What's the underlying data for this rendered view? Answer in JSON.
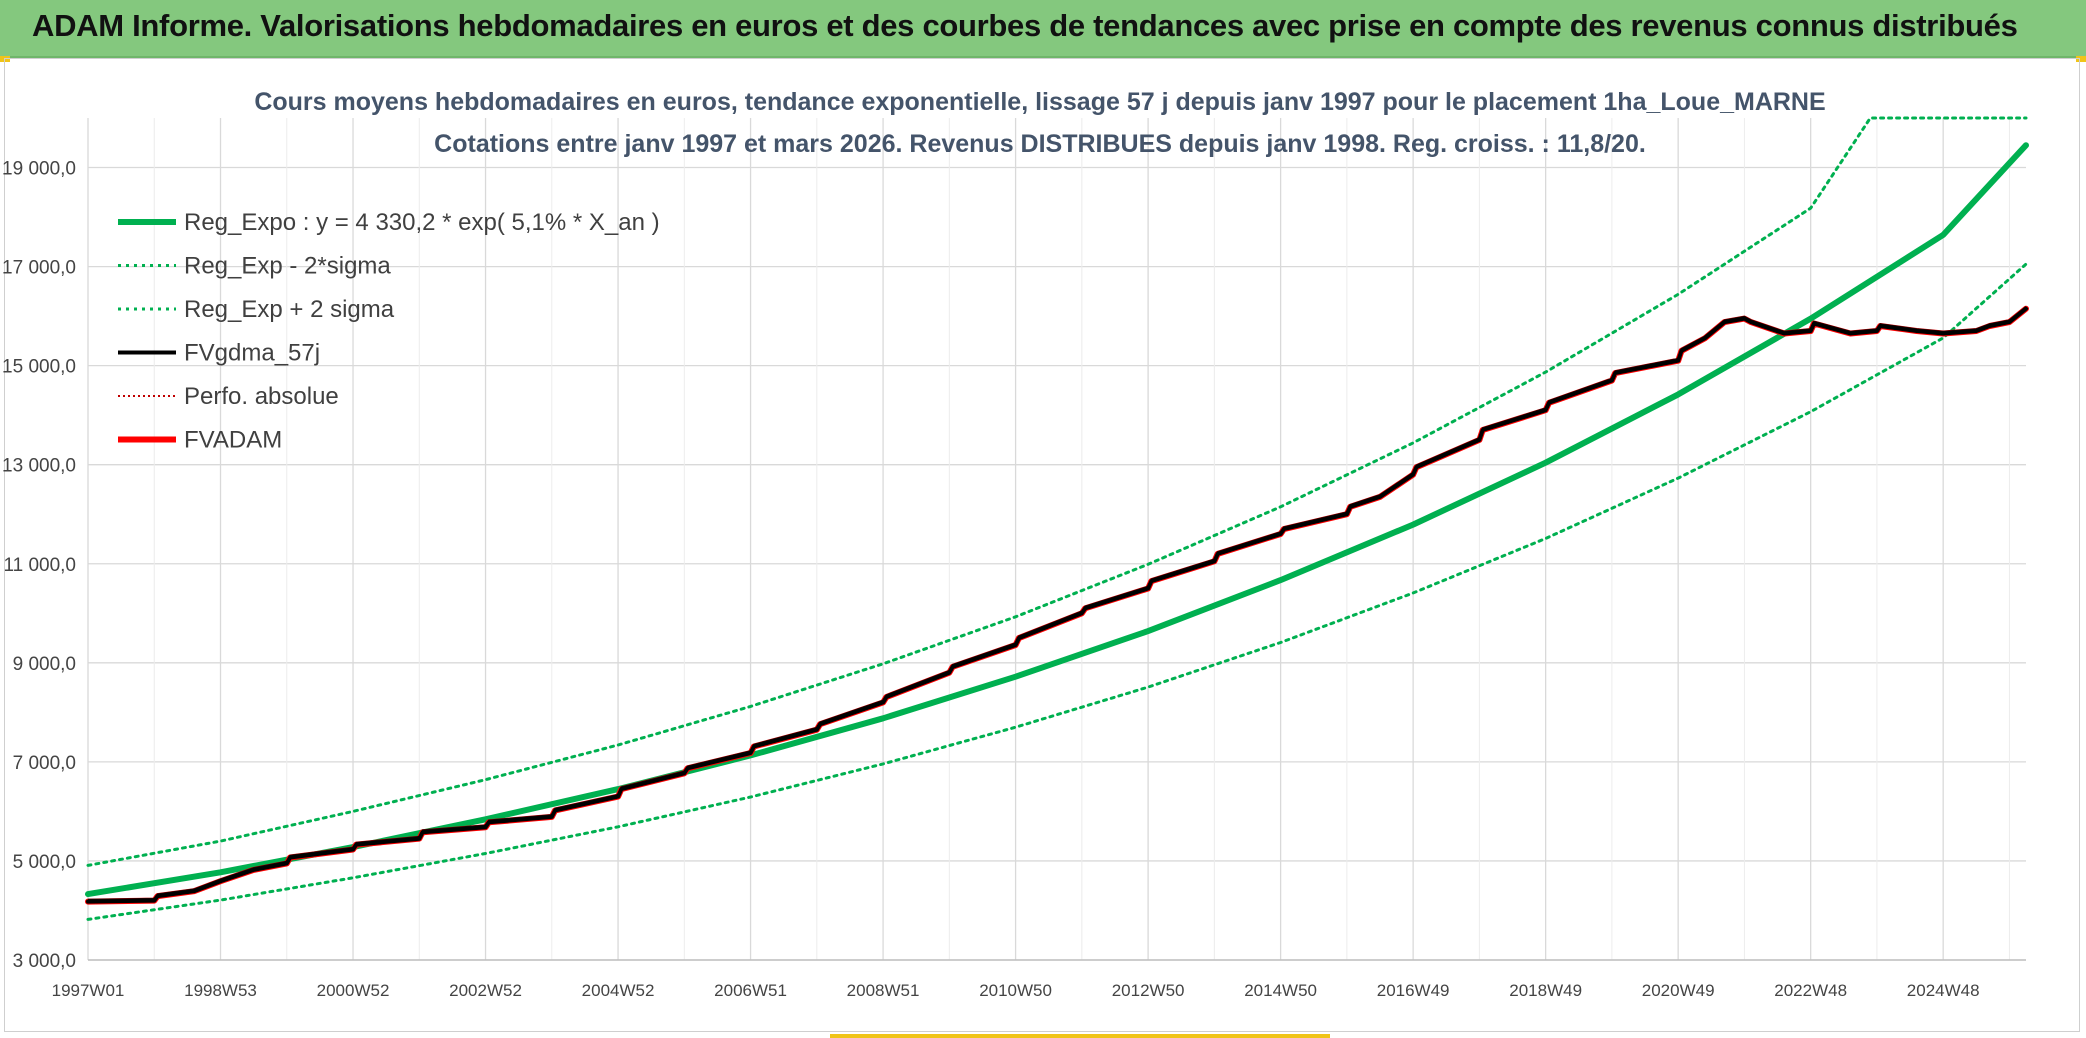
{
  "banner": {
    "title": "ADAM Informe. Valorisations hebdomadaires en euros et des courbes de tendances avec prise en compte des revenus connus distribués"
  },
  "colors": {
    "banner_bg": "#84c87e",
    "reg_green": "#00b050",
    "fvadam_red": "#ff0000",
    "fvgdma_black": "#000000",
    "perfo_red": "#c00000"
  },
  "chart_data": {
    "type": "line",
    "title": "Cours moyens hebdomadaires en euros, tendance exponentielle, lissage 57 j depuis janv 1997 pour le placement 1ha_Loue_MARNE",
    "subtitle": "Cotations entre janv 1997 et mars 2026. Revenus DISTRIBUES depuis janv 1998. Reg. croiss. : 11,8/20.",
    "xlabel": "",
    "ylabel": "",
    "ylim": [
      3000,
      20000
    ],
    "xlim": [
      1997.0,
      2026.25
    ],
    "y_ticks": [
      3000,
      5000,
      7000,
      9000,
      11000,
      13000,
      15000,
      17000,
      19000
    ],
    "y_tick_labels": [
      "3 000,0",
      "5 000,0",
      "7 000,0",
      "9 000,0",
      "11 000,0",
      "13 000,0",
      "15 000,0",
      "17 000,0",
      "19 000,0"
    ],
    "x_ticks": [
      1997.0,
      1999.0,
      2001.0,
      2003.0,
      2005.0,
      2007.0,
      2009.0,
      2011.0,
      2013.0,
      2015.0,
      2017.0,
      2019.0,
      2021.0,
      2023.0,
      2025.0
    ],
    "x_tick_labels": [
      "1997W01",
      "1998W53",
      "2000W52",
      "2002W52",
      "2004W52",
      "2006W51",
      "2008W51",
      "2010W50",
      "2012W50",
      "2014W50",
      "2016W49",
      "2018W49",
      "2020W49",
      "2022W48",
      "2024W48"
    ],
    "grid": true,
    "legend_position": "top-left",
    "legend": [
      {
        "label": "Reg_Expo : y = 4 330,2 * exp( 5,1% *  X_an )",
        "color": "#00b050",
        "style": "solid",
        "width": 6
      },
      {
        "label": "Reg_Exp - 2*sigma",
        "color": "#00b050",
        "style": "dotted",
        "width": 3
      },
      {
        "label": "Reg_Exp + 2 sigma",
        "color": "#00b050",
        "style": "dotted",
        "width": 3
      },
      {
        "label": "FVgdma_57j",
        "color": "#000000",
        "style": "solid",
        "width": 4
      },
      {
        "label": "Perfo. absolue",
        "color": "#c00000",
        "style": "dotted",
        "width": 2
      },
      {
        "label": "FVADAM",
        "color": "#ff0000",
        "style": "solid",
        "width": 6
      }
    ],
    "series": [
      {
        "name": "Reg_Expo",
        "x": [
          1997.0,
          1999.0,
          2001.0,
          2003.0,
          2005.0,
          2007.0,
          2009.0,
          2011.0,
          2013.0,
          2015.0,
          2017.0,
          2019.0,
          2021.0,
          2023.0,
          2025.0,
          2026.25
        ],
        "values": [
          4330,
          4770,
          5280,
          5840,
          6450,
          7130,
          7880,
          8720,
          9640,
          10670,
          11790,
          13040,
          14420,
          15950,
          17640,
          19450
        ]
      },
      {
        "name": "Reg_Exp - 2*sigma",
        "x": [
          1997.0,
          1999.0,
          2001.0,
          2003.0,
          2005.0,
          2007.0,
          2009.0,
          2011.0,
          2013.0,
          2015.0,
          2017.0,
          2019.0,
          2021.0,
          2023.0,
          2025.0,
          2026.25
        ],
        "values": [
          3820,
          4210,
          4660,
          5150,
          5690,
          6290,
          6960,
          7700,
          8510,
          9410,
          10410,
          11510,
          12730,
          14070,
          15560,
          17050
        ]
      },
      {
        "name": "Reg_Exp + 2 sigma",
        "x": [
          1997.0,
          1999.0,
          2001.0,
          2003.0,
          2005.0,
          2007.0,
          2009.0,
          2011.0,
          2013.0,
          2015.0,
          2017.0,
          2019.0,
          2021.0,
          2023.0,
          2023.9,
          2026.25
        ],
        "values": [
          4910,
          5400,
          6000,
          6640,
          7340,
          8120,
          8980,
          9930,
          10990,
          12150,
          13440,
          14870,
          16440,
          18180,
          20000,
          20000
        ]
      },
      {
        "name": "FVADAM",
        "x": [
          1997.0,
          1998.0,
          1998.05,
          1998.6,
          1999.0,
          1999.5,
          2000.0,
          2000.05,
          2001.0,
          2001.05,
          2002.0,
          2002.05,
          2003.0,
          2003.05,
          2004.0,
          2004.05,
          2005.0,
          2005.05,
          2006.0,
          2006.05,
          2007.0,
          2007.05,
          2008.0,
          2008.05,
          2009.0,
          2009.05,
          2010.0,
          2010.05,
          2011.0,
          2011.05,
          2012.0,
          2012.05,
          2013.0,
          2013.05,
          2014.0,
          2014.05,
          2015.0,
          2015.05,
          2016.0,
          2016.05,
          2016.5,
          2017.0,
          2017.05,
          2018.0,
          2018.05,
          2019.0,
          2019.05,
          2020.0,
          2020.05,
          2021.0,
          2021.05,
          2021.4,
          2021.7,
          2022.0,
          2022.1,
          2022.6,
          2023.0,
          2023.05,
          2023.6,
          2024.0,
          2024.05,
          2024.6,
          2025.0,
          2025.5,
          2025.7,
          2026.0,
          2026.25
        ],
        "values": [
          4180,
          4200,
          4290,
          4390,
          4590,
          4820,
          4950,
          5070,
          5230,
          5330,
          5450,
          5580,
          5680,
          5780,
          5890,
          6020,
          6300,
          6450,
          6770,
          6870,
          7180,
          7310,
          7650,
          7760,
          8200,
          8310,
          8800,
          8920,
          9360,
          9500,
          10000,
          10100,
          10500,
          10650,
          11050,
          11200,
          11600,
          11700,
          12000,
          12150,
          12350,
          12800,
          12950,
          13500,
          13700,
          14100,
          14250,
          14700,
          14850,
          15100,
          15300,
          15550,
          15880,
          15950,
          15880,
          15650,
          15700,
          15850,
          15650,
          15700,
          15800,
          15700,
          15650,
          15700,
          15800,
          15880,
          16150
        ]
      },
      {
        "name": "FVgdma_57j",
        "x": [
          1997.0,
          1998.0,
          1998.05,
          1998.6,
          1999.0,
          1999.5,
          2000.0,
          2000.05,
          2001.0,
          2001.05,
          2002.0,
          2002.05,
          2003.0,
          2003.05,
          2004.0,
          2004.05,
          2005.0,
          2005.05,
          2006.0,
          2006.05,
          2007.0,
          2007.05,
          2008.0,
          2008.05,
          2009.0,
          2009.05,
          2010.0,
          2010.05,
          2011.0,
          2011.05,
          2012.0,
          2012.05,
          2013.0,
          2013.05,
          2014.0,
          2014.05,
          2015.0,
          2015.05,
          2016.0,
          2016.05,
          2016.5,
          2017.0,
          2017.05,
          2018.0,
          2018.05,
          2019.0,
          2019.05,
          2020.0,
          2020.05,
          2021.0,
          2021.05,
          2021.4,
          2021.7,
          2022.0,
          2022.1,
          2022.6,
          2023.0,
          2023.05,
          2023.6,
          2024.0,
          2024.05,
          2024.6,
          2025.0,
          2025.5,
          2025.7,
          2026.0,
          2026.25
        ],
        "values": [
          4180,
          4200,
          4290,
          4390,
          4590,
          4820,
          4950,
          5070,
          5230,
          5330,
          5450,
          5580,
          5680,
          5780,
          5890,
          6020,
          6300,
          6450,
          6770,
          6870,
          7180,
          7310,
          7650,
          7760,
          8200,
          8310,
          8800,
          8920,
          9360,
          9500,
          10000,
          10100,
          10500,
          10650,
          11050,
          11200,
          11600,
          11700,
          12000,
          12150,
          12350,
          12800,
          12950,
          13500,
          13700,
          14100,
          14250,
          14700,
          14850,
          15100,
          15300,
          15550,
          15880,
          15950,
          15880,
          15650,
          15700,
          15850,
          15650,
          15700,
          15800,
          15700,
          15650,
          15700,
          15800,
          15880,
          16150
        ]
      },
      {
        "name": "Perfo. absolue",
        "x": [],
        "values": []
      }
    ]
  }
}
